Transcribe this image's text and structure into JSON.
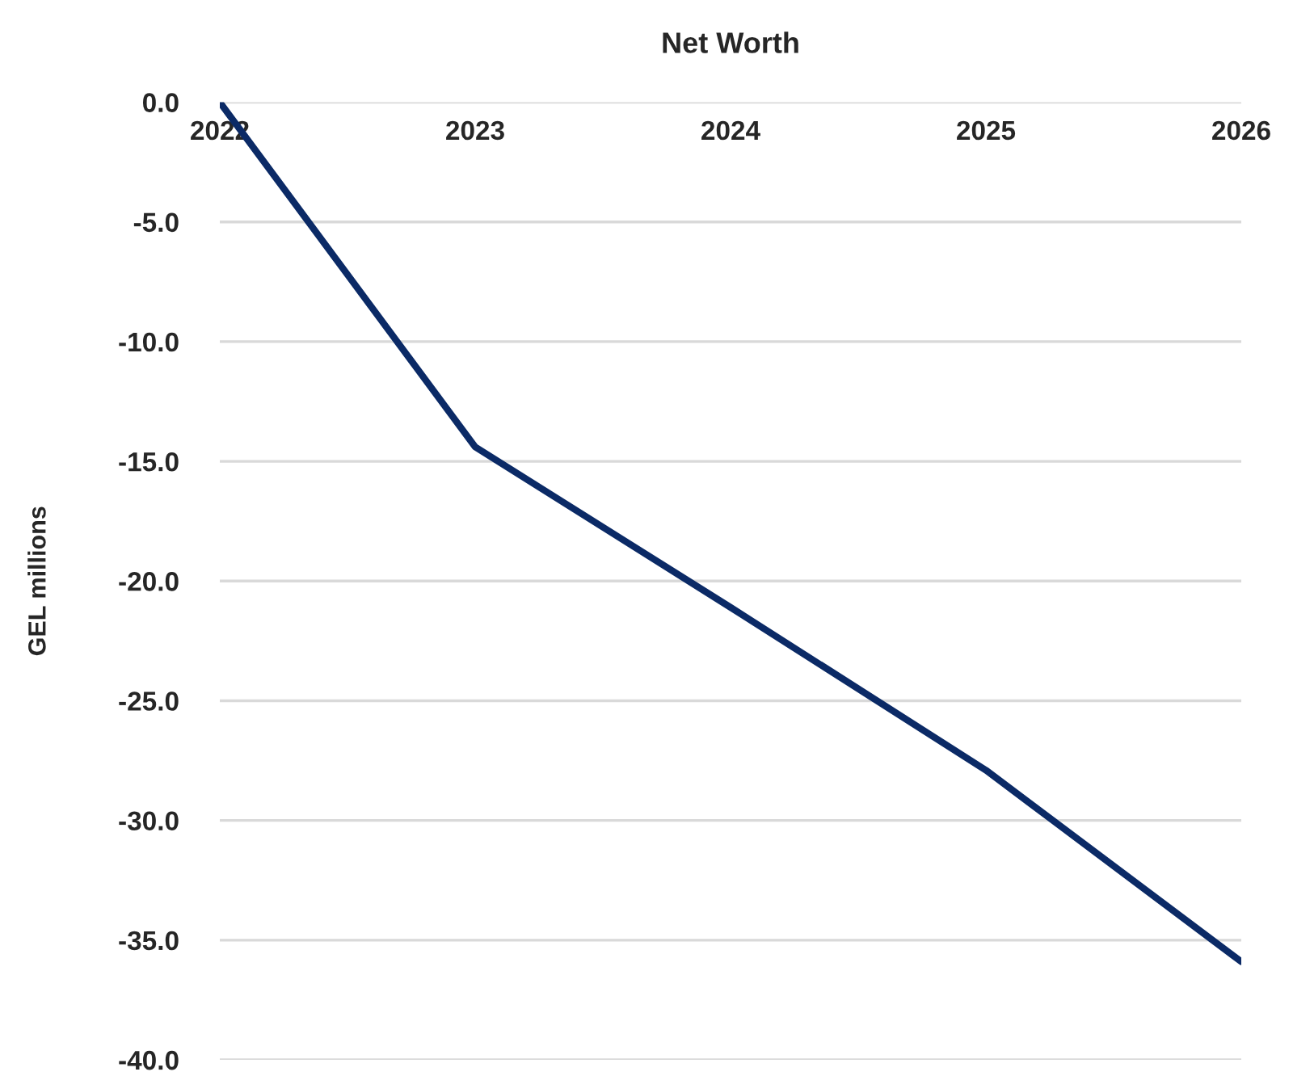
{
  "chart_data": {
    "type": "line",
    "title": "Net Worth",
    "ylabel": "GEL millions",
    "categories": [
      "2022",
      "2023",
      "2024",
      "2025",
      "2026"
    ],
    "series": [
      {
        "color": "#0b2a66",
        "values": [
          0.0,
          -14.4,
          -21.1,
          -27.9,
          -35.9
        ]
      }
    ],
    "ylim": [
      -40,
      0
    ],
    "yticks": [
      {
        "value": 0,
        "label": "0.0"
      },
      {
        "value": -5,
        "label": "-5.0"
      },
      {
        "value": -10,
        "label": "-10.0"
      },
      {
        "value": -15,
        "label": "-15.0"
      },
      {
        "value": -20,
        "label": "-20.0"
      },
      {
        "value": -25,
        "label": "-25.0"
      },
      {
        "value": -30,
        "label": "-30.0"
      },
      {
        "value": -35,
        "label": "-35.0"
      },
      {
        "value": -40,
        "label": "-40.0"
      }
    ],
    "grid": "y",
    "marker": "none",
    "line_style": "solid"
  }
}
